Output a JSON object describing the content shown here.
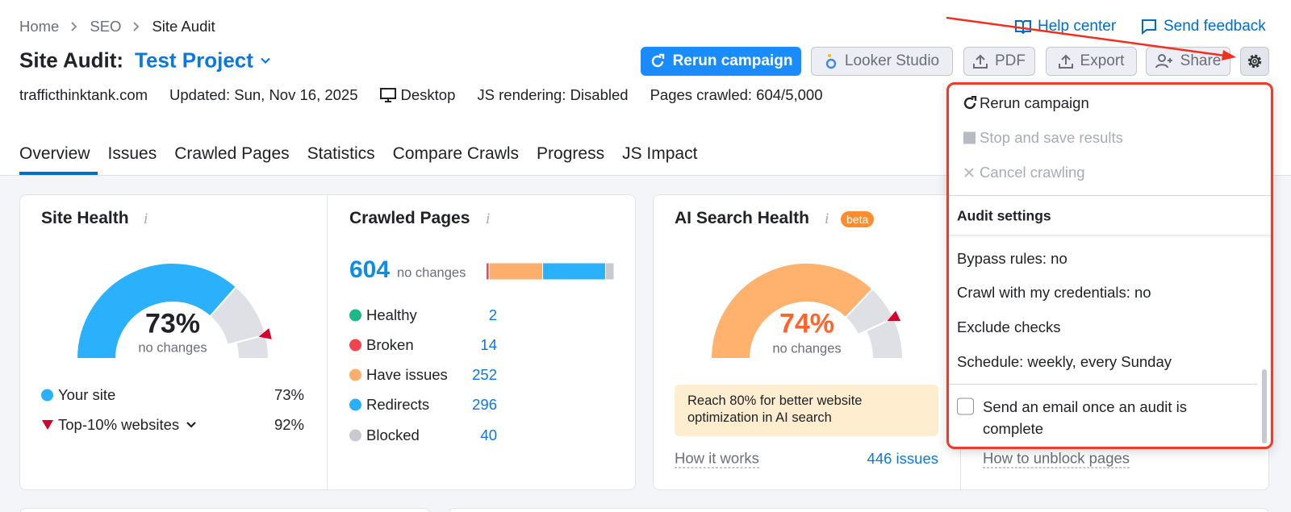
{
  "breadcrumb": [
    "Home",
    "SEO",
    "Site Audit"
  ],
  "top_links": [
    "Help center",
    "Send feedback"
  ],
  "title": "Site Audit:",
  "project": "Test Project",
  "buttons": [
    "Rerun campaign",
    "Looker Studio",
    "PDF",
    "Export",
    "Share"
  ],
  "meta": {
    "domain": "trafficthinktank.com",
    "updated": "Updated: Sun, Nov 16, 2025",
    "device": "Desktop",
    "js": "JS rendering: Disabled",
    "pages": "Pages crawled: 604/5,000"
  },
  "tabs": [
    "Overview",
    "Issues",
    "Crawled Pages",
    "Statistics",
    "Compare Crawls",
    "Progress",
    "JS Impact"
  ],
  "gauge_scale": [
    0,
    100
  ],
  "site_health": {
    "title": "Site Health",
    "note": "no changes",
    "legend": [
      {
        "name": "Your site",
        "value": 73,
        "value_label": "73%",
        "color": "#2bb0fb"
      },
      {
        "name": "Top-10% websites",
        "value": 92,
        "value_label": "92%",
        "color": "#d6002f"
      }
    ]
  },
  "crawled_pages": {
    "title": "Crawled Pages",
    "total": 604,
    "note": "no changes",
    "items": [
      {
        "name": "Healthy",
        "value": 2,
        "color": "#1cb885"
      },
      {
        "name": "Broken",
        "value": 14,
        "color": "#f2434e"
      },
      {
        "name": "Have issues",
        "value": 252,
        "color": "#ffad6b"
      },
      {
        "name": "Redirects",
        "value": 296,
        "color": "#2bb0fb"
      },
      {
        "name": "Blocked",
        "value": 40,
        "color": "#c8c9d1"
      }
    ]
  },
  "ai_search_health": {
    "title": "AI Search Health",
    "badge": "beta",
    "value": 74,
    "value_label": "74%",
    "benchmark": 86,
    "color": "#ffb26e",
    "note": "no changes",
    "notice": "Reach 80% for better website optimization in AI search",
    "link": "How it works",
    "issues": "446 issues"
  },
  "third_card_link": "How to unblock pages",
  "menu": {
    "actions": [
      "Rerun campaign",
      "Stop and save results",
      "Cancel crawling"
    ],
    "section": "Audit settings",
    "settings": [
      "Bypass rules: no",
      "Crawl with my credentials: no",
      "Exclude checks",
      "Schedule: weekly, every Sunday"
    ],
    "checkbox": "Send an email once an audit is complete"
  }
}
